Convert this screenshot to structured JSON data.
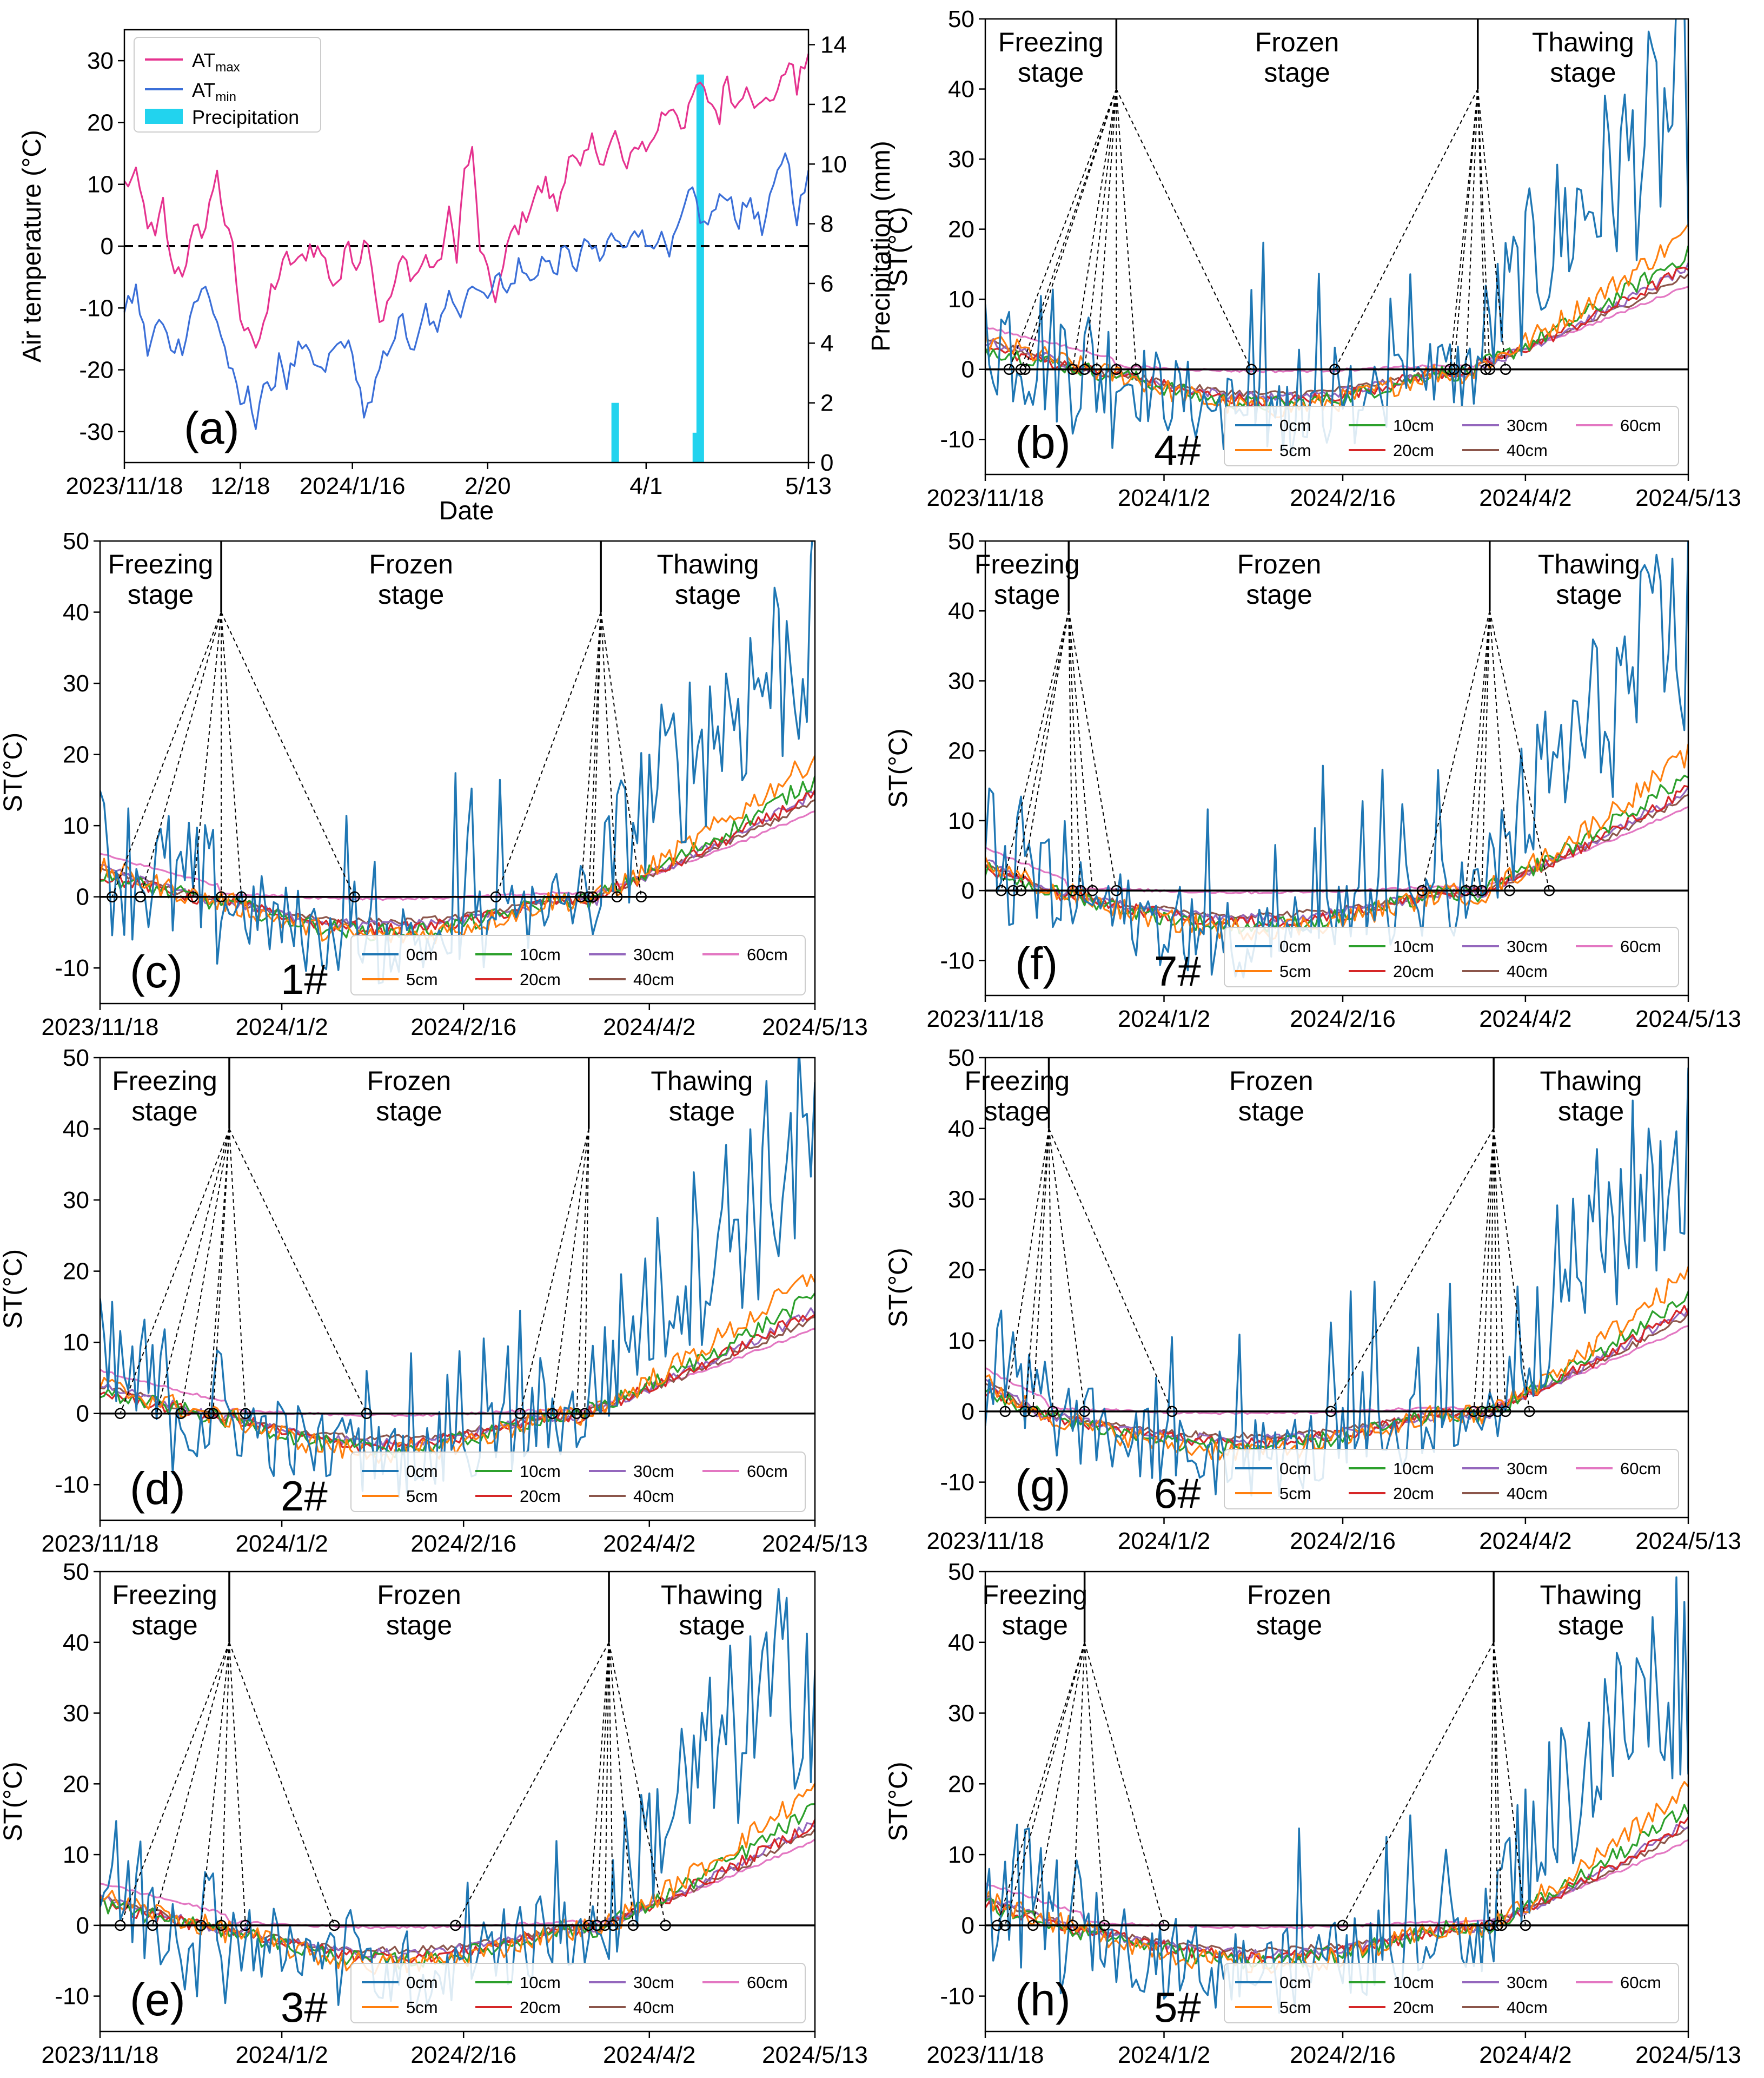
{
  "figure": {
    "colors": {
      "at_max": "#e5338f",
      "at_min": "#3b6fd8",
      "precip": "#22d3ee",
      "depth_0": "#1f77b4",
      "depth_5": "#ff7f0e",
      "depth_10": "#2ca02c",
      "depth_20": "#d62728",
      "depth_30": "#9467bd",
      "depth_40": "#8c564b",
      "depth_60": "#e377c2"
    },
    "depth_labels": [
      "0cm",
      "5cm",
      "10cm",
      "20cm",
      "30cm",
      "40cm",
      "60cm"
    ]
  },
  "chart_data": [
    {
      "id": "a",
      "type": "line",
      "panel_label": "(a)",
      "xlabel": "Date",
      "ylabel": "Air temperature (°C)",
      "y2label": "Precipitation (mm)",
      "xlim_days": [
        0,
        177
      ],
      "ylim": [
        -35,
        35
      ],
      "y2lim": [
        0,
        14.5
      ],
      "xticks": [
        {
          "day": 0,
          "label": "2023/11/18"
        },
        {
          "day": 30,
          "label": "12/18"
        },
        {
          "day": 59,
          "label": "2024/1/16"
        },
        {
          "day": 94,
          "label": "2/20"
        },
        {
          "day": 135,
          "label": "4/1"
        },
        {
          "day": 177,
          "label": "5/13"
        }
      ],
      "yticks": [
        -30,
        -20,
        -10,
        0,
        10,
        20,
        30
      ],
      "y2ticks": [
        0,
        2,
        4,
        6,
        8,
        10,
        12,
        14
      ],
      "legend": [
        "AT",
        "AT",
        "Precipitation"
      ],
      "legend_subscripts": [
        "max",
        "min"
      ],
      "series": [
        {
          "name": "ATmax",
          "points": [
            [
              0,
              10
            ],
            [
              3,
              11
            ],
            [
              6,
              4
            ],
            [
              8,
              1
            ],
            [
              10,
              7
            ],
            [
              12,
              -3
            ],
            [
              15,
              -4
            ],
            [
              18,
              2
            ],
            [
              21,
              3
            ],
            [
              24,
              13
            ],
            [
              26,
              2
            ],
            [
              28,
              1
            ],
            [
              30,
              -13
            ],
            [
              32,
              -12
            ],
            [
              34,
              -16
            ],
            [
              36,
              -14
            ],
            [
              38,
              -7
            ],
            [
              40,
              -5
            ],
            [
              42,
              -2
            ],
            [
              45,
              -3
            ],
            [
              48,
              0
            ],
            [
              51,
              -1
            ],
            [
              54,
              -6
            ],
            [
              56,
              -5
            ],
            [
              58,
              1
            ],
            [
              60,
              -3
            ],
            [
              63,
              2
            ],
            [
              66,
              -12
            ],
            [
              68,
              -10
            ],
            [
              70,
              -6
            ],
            [
              72,
              -2
            ],
            [
              75,
              -5
            ],
            [
              78,
              -2
            ],
            [
              81,
              -4
            ],
            [
              84,
              5
            ],
            [
              86,
              -1
            ],
            [
              88,
              12
            ],
            [
              90,
              15
            ],
            [
              92,
              0
            ],
            [
              94,
              -5
            ],
            [
              96,
              -8
            ],
            [
              98,
              -4
            ],
            [
              100,
              2
            ],
            [
              103,
              4
            ],
            [
              106,
              8
            ],
            [
              109,
              10
            ],
            [
              112,
              6
            ],
            [
              115,
              15
            ],
            [
              118,
              12
            ],
            [
              121,
              17
            ],
            [
              124,
              14
            ],
            [
              127,
              18
            ],
            [
              130,
              12
            ],
            [
              133,
              17
            ],
            [
              136,
              16
            ],
            [
              139,
              21
            ],
            [
              142,
              23
            ],
            [
              145,
              19
            ],
            [
              148,
              26
            ],
            [
              151,
              24
            ],
            [
              154,
              21
            ],
            [
              156,
              28
            ],
            [
              158,
              22
            ],
            [
              161,
              27
            ],
            [
              164,
              22
            ],
            [
              167,
              24
            ],
            [
              170,
              26
            ],
            [
              172,
              31
            ],
            [
              174,
              25
            ],
            [
              177,
              32
            ]
          ]
        },
        {
          "name": "ATmin",
          "points": [
            [
              0,
              -11
            ],
            [
              3,
              -7
            ],
            [
              6,
              -17
            ],
            [
              9,
              -12
            ],
            [
              12,
              -16
            ],
            [
              15,
              -16
            ],
            [
              18,
              -9
            ],
            [
              21,
              -7
            ],
            [
              24,
              -12
            ],
            [
              27,
              -19
            ],
            [
              30,
              -26
            ],
            [
              32,
              -24
            ],
            [
              34,
              -28
            ],
            [
              36,
              -22
            ],
            [
              38,
              -25
            ],
            [
              40,
              -17
            ],
            [
              42,
              -22
            ],
            [
              45,
              -17
            ],
            [
              48,
              -18
            ],
            [
              51,
              -21
            ],
            [
              54,
              -17
            ],
            [
              57,
              -15
            ],
            [
              60,
              -20
            ],
            [
              62,
              -27
            ],
            [
              64,
              -26
            ],
            [
              66,
              -20
            ],
            [
              69,
              -15
            ],
            [
              72,
              -12
            ],
            [
              75,
              -18
            ],
            [
              78,
              -10
            ],
            [
              81,
              -15
            ],
            [
              84,
              -6
            ],
            [
              87,
              -11
            ],
            [
              90,
              -5
            ],
            [
              93,
              -9
            ],
            [
              96,
              -4
            ],
            [
              99,
              -8
            ],
            [
              102,
              -3
            ],
            [
              105,
              -6
            ],
            [
              108,
              -2
            ],
            [
              111,
              -4
            ],
            [
              114,
              -1
            ],
            [
              117,
              -3
            ],
            [
              120,
              1
            ],
            [
              123,
              -3
            ],
            [
              126,
              2
            ],
            [
              129,
              -1
            ],
            [
              132,
              4
            ],
            [
              135,
              0
            ],
            [
              138,
              2
            ],
            [
              141,
              -2
            ],
            [
              144,
              4
            ],
            [
              147,
              9
            ],
            [
              150,
              3
            ],
            [
              153,
              6
            ],
            [
              156,
              9
            ],
            [
              159,
              4
            ],
            [
              162,
              8
            ],
            [
              165,
              2
            ],
            [
              168,
              9
            ],
            [
              171,
              16
            ],
            [
              174,
              5
            ],
            [
              177,
              11
            ]
          ]
        }
      ],
      "precipitation": [
        {
          "day": 127,
          "mm": 2.0
        },
        {
          "day": 148,
          "mm": 1.0
        },
        {
          "day": 149,
          "mm": 13.0
        }
      ]
    },
    {
      "id": "b",
      "type": "line",
      "panel_label": "(b)",
      "site_label": "4#",
      "ylabel": "ST(°C)",
      "ylim": [
        -15,
        50
      ],
      "xlim_days": [
        0,
        177
      ],
      "xticks": [
        {
          "day": 0,
          "label": "2023/11/18"
        },
        {
          "day": 45,
          "label": "2024/1/2"
        },
        {
          "day": 90,
          "label": "2024/2/16"
        },
        {
          "day": 136,
          "label": "2024/4/2"
        },
        {
          "day": 177,
          "label": "2024/5/13"
        }
      ],
      "yticks": [
        -10,
        0,
        10,
        20,
        30,
        40,
        50
      ],
      "stages": [
        "Freezing\nstage",
        "Frozen\nstage",
        "Thawing\nstage"
      ],
      "dividers": [
        33,
        124
      ],
      "apex_y": 40,
      "freeze_markers": [
        6,
        9,
        10,
        22,
        25,
        28,
        33,
        38,
        67
      ],
      "thaw_markers": [
        88,
        117,
        118,
        121,
        126,
        127,
        131
      ]
    },
    {
      "id": "c",
      "type": "line",
      "panel_label": "(c)",
      "site_label": "1#",
      "ylabel": "ST(°C)",
      "ylim": [
        -15,
        50
      ],
      "xlim_days": [
        0,
        177
      ],
      "xticks": [
        {
          "day": 0,
          "label": "2023/11/18"
        },
        {
          "day": 45,
          "label": "2024/1/2"
        },
        {
          "day": 90,
          "label": "2024/2/16"
        },
        {
          "day": 136,
          "label": "2024/4/2"
        },
        {
          "day": 177,
          "label": "2024/5/13"
        }
      ],
      "yticks": [
        -10,
        0,
        10,
        20,
        30,
        40,
        50
      ],
      "stages": [
        "Freezing\nstage",
        "Frozen\nstage",
        "Thawing\nstage"
      ],
      "dividers": [
        30,
        124
      ],
      "apex_y": 40,
      "freeze_markers": [
        3,
        10,
        23,
        30,
        35,
        63
      ],
      "thaw_markers": [
        98,
        119,
        121,
        122,
        128,
        134
      ]
    },
    {
      "id": "d",
      "type": "line",
      "panel_label": "(d)",
      "site_label": "2#",
      "ylabel": "ST(°C)",
      "ylim": [
        -15,
        50
      ],
      "xlim_days": [
        0,
        177
      ],
      "xticks": [
        {
          "day": 0,
          "label": "2023/11/18"
        },
        {
          "day": 45,
          "label": "2024/1/2"
        },
        {
          "day": 90,
          "label": "2024/2/16"
        },
        {
          "day": 136,
          "label": "2024/4/2"
        },
        {
          "day": 177,
          "label": "2024/5/13"
        }
      ],
      "yticks": [
        -10,
        0,
        10,
        20,
        30,
        40,
        50
      ],
      "stages": [
        "Freezing\nstage",
        "Frozen\nstage",
        "Thawing\nstage"
      ],
      "dividers": [
        32,
        121
      ],
      "apex_y": 40,
      "freeze_markers": [
        5,
        14,
        20,
        27,
        28,
        36,
        66
      ],
      "thaw_markers": [
        104,
        112,
        118,
        120
      ]
    },
    {
      "id": "e",
      "type": "line",
      "panel_label": "(e)",
      "site_label": "3#",
      "ylabel": "ST(°C)",
      "ylim": [
        -15,
        50
      ],
      "xlim_days": [
        0,
        177
      ],
      "xticks": [
        {
          "day": 0,
          "label": "2023/11/18"
        },
        {
          "day": 45,
          "label": "2024/1/2"
        },
        {
          "day": 90,
          "label": "2024/2/16"
        },
        {
          "day": 136,
          "label": "2024/4/2"
        },
        {
          "day": 177,
          "label": "2024/5/13"
        }
      ],
      "yticks": [
        -10,
        0,
        10,
        20,
        30,
        40,
        50
      ],
      "stages": [
        "Freezing\nstage",
        "Frozen\nstage",
        "Thawing\nstage"
      ],
      "dividers": [
        32,
        126
      ],
      "apex_y": 40,
      "freeze_markers": [
        5,
        13,
        25,
        30,
        36,
        58
      ],
      "thaw_markers": [
        88,
        121,
        123,
        125,
        127,
        132,
        140
      ]
    },
    {
      "id": "f",
      "type": "line",
      "panel_label": "(f)",
      "site_label": "7#",
      "ylabel": "ST(°C)",
      "ylim": [
        -15,
        50
      ],
      "xlim_days": [
        0,
        177
      ],
      "xticks": [
        {
          "day": 0,
          "label": "2023/11/18"
        },
        {
          "day": 45,
          "label": "2024/1/2"
        },
        {
          "day": 90,
          "label": "2024/2/16"
        },
        {
          "day": 136,
          "label": "2024/4/2"
        },
        {
          "day": 177,
          "label": "2024/5/13"
        }
      ],
      "yticks": [
        -10,
        0,
        10,
        20,
        30,
        40,
        50
      ],
      "stages": [
        "Freezing\nstage",
        "Frozen\nstage",
        "Thawing\nstage"
      ],
      "dividers": [
        21,
        127
      ],
      "apex_y": 40,
      "freeze_markers": [
        4,
        7,
        9,
        22,
        24,
        27,
        33
      ],
      "thaw_markers": [
        110,
        121,
        123,
        125,
        132,
        142
      ]
    },
    {
      "id": "g",
      "type": "line",
      "panel_label": "(g)",
      "site_label": "6#",
      "ylabel": "ST(°C)",
      "ylim": [
        -15,
        50
      ],
      "xlim_days": [
        0,
        177
      ],
      "xticks": [
        {
          "day": 0,
          "label": "2023/11/18"
        },
        {
          "day": 45,
          "label": "2024/1/2"
        },
        {
          "day": 90,
          "label": "2024/2/16"
        },
        {
          "day": 136,
          "label": "2024/4/2"
        },
        {
          "day": 177,
          "label": "2024/5/13"
        }
      ],
      "yticks": [
        -10,
        0,
        10,
        20,
        30,
        40,
        50
      ],
      "stages": [
        "Freezing\nstage",
        "Frozen\nstage",
        "Thawing\nstage"
      ],
      "dividers": [
        16,
        128
      ],
      "apex_y": 40,
      "freeze_markers": [
        5,
        10,
        12,
        17,
        25,
        47
      ],
      "thaw_markers": [
        87,
        123,
        125,
        127,
        129,
        131,
        137
      ]
    },
    {
      "id": "h",
      "type": "line",
      "panel_label": "(h)",
      "site_label": "5#",
      "ylabel": "ST(°C)",
      "ylim": [
        -15,
        50
      ],
      "xlim_days": [
        0,
        177
      ],
      "xticks": [
        {
          "day": 0,
          "label": "2023/11/18"
        },
        {
          "day": 45,
          "label": "2024/1/2"
        },
        {
          "day": 90,
          "label": "2024/2/16"
        },
        {
          "day": 136,
          "label": "2024/4/2"
        },
        {
          "day": 177,
          "label": "2024/5/13"
        }
      ],
      "yticks": [
        -10,
        0,
        10,
        20,
        30,
        40,
        50
      ],
      "stages": [
        "Freezing\nstage",
        "Frozen\nstage",
        "Thawing\nstage"
      ],
      "dividers": [
        25,
        128
      ],
      "apex_y": 40,
      "freeze_markers": [
        3,
        5,
        12,
        22,
        30,
        45
      ],
      "thaw_markers": [
        90,
        127,
        129,
        130,
        136
      ]
    }
  ]
}
